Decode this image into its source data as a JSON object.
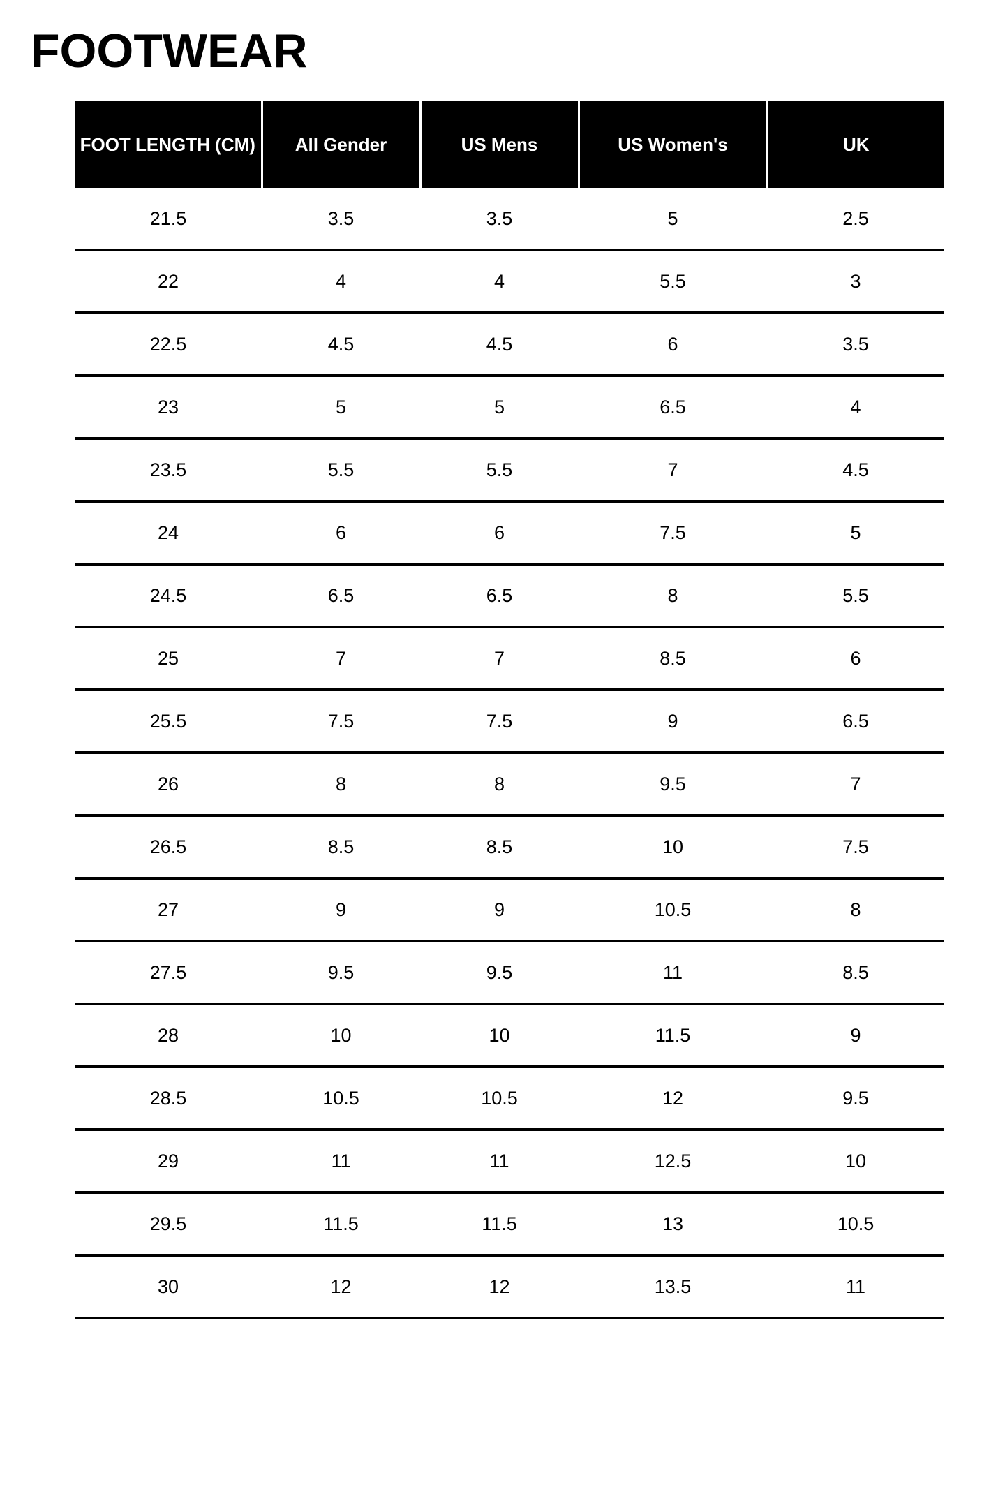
{
  "title": "FOOTWEAR",
  "table": {
    "headers": [
      "FOOT LENGTH (CM)",
      "All Gender",
      "US Mens",
      "US Women's",
      "UK"
    ],
    "rows": [
      [
        "21.5",
        "3.5",
        "3.5",
        "5",
        "2.5"
      ],
      [
        "22",
        "4",
        "4",
        "5.5",
        "3"
      ],
      [
        "22.5",
        "4.5",
        "4.5",
        "6",
        "3.5"
      ],
      [
        "23",
        "5",
        "5",
        "6.5",
        "4"
      ],
      [
        "23.5",
        "5.5",
        "5.5",
        "7",
        "4.5"
      ],
      [
        "24",
        "6",
        "6",
        "7.5",
        "5"
      ],
      [
        "24.5",
        "6.5",
        "6.5",
        "8",
        "5.5"
      ],
      [
        "25",
        "7",
        "7",
        "8.5",
        "6"
      ],
      [
        "25.5",
        "7.5",
        "7.5",
        "9",
        "6.5"
      ],
      [
        "26",
        "8",
        "8",
        "9.5",
        "7"
      ],
      [
        "26.5",
        "8.5",
        "8.5",
        "10",
        "7.5"
      ],
      [
        "27",
        "9",
        "9",
        "10.5",
        "8"
      ],
      [
        "27.5",
        "9.5",
        "9.5",
        "11",
        "8.5"
      ],
      [
        "28",
        "10",
        "10",
        "11.5",
        "9"
      ],
      [
        "28.5",
        "10.5",
        "10.5",
        "12",
        "9.5"
      ],
      [
        "29",
        "11",
        "11",
        "12.5",
        "10"
      ],
      [
        "29.5",
        "11.5",
        "11.5",
        "13",
        "10.5"
      ],
      [
        "30",
        "12",
        "12",
        "13.5",
        "11"
      ]
    ]
  }
}
